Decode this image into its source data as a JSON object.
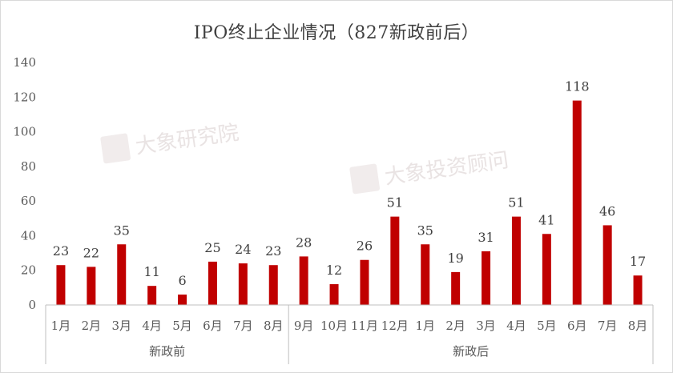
{
  "chart_data": {
    "type": "bar",
    "title": "IPO终止企业情况（827新政前后）",
    "ylim": [
      0,
      140
    ],
    "yticks": [
      0,
      20,
      40,
      60,
      80,
      100,
      120,
      140
    ],
    "categories": [
      "1月",
      "2月",
      "3月",
      "4月",
      "5月",
      "6月",
      "7月",
      "8月",
      "9月",
      "10月",
      "11月",
      "12月",
      "1月",
      "2月",
      "3月",
      "4月",
      "5月",
      "6月",
      "7月",
      "8月"
    ],
    "values": [
      23,
      22,
      35,
      11,
      6,
      25,
      24,
      23,
      28,
      12,
      26,
      51,
      35,
      19,
      31,
      51,
      41,
      118,
      46,
      17
    ],
    "groups": [
      {
        "label": "新政前",
        "count": 8
      },
      {
        "label": "新政后",
        "count": 12
      }
    ],
    "bar_color": "#c00000",
    "grid": false,
    "legend": "none"
  },
  "watermarks": [
    "大象研究院",
    "大象投资顾问"
  ]
}
